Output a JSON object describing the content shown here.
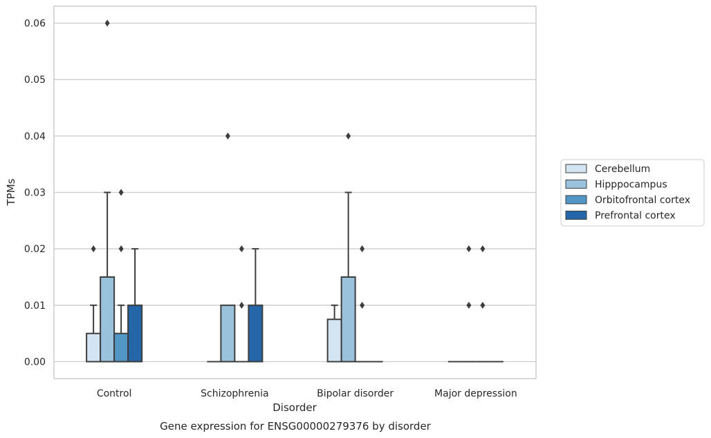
{
  "chart_data": {
    "type": "box",
    "caption": "Gene expression for ENSG00000279376 by disorder",
    "xlabel": "Disorder",
    "ylabel": "TPMs",
    "ylim": [
      -0.003,
      0.063
    ],
    "yticks": [
      0.0,
      0.01,
      0.02,
      0.03,
      0.04,
      0.05,
      0.06
    ],
    "ytick_labels": [
      "0.00",
      "0.01",
      "0.02",
      "0.03",
      "0.04",
      "0.05",
      "0.06"
    ],
    "grid": "horizontal",
    "legend_position": "right",
    "categories": [
      "Control",
      "Schizophrenia",
      "Bipolar disorder",
      "Major depression"
    ],
    "series": [
      {
        "name": "Cerebellum",
        "color": "#d3e4f3",
        "boxes": [
          {
            "q1": 0.0,
            "median": 0.0,
            "q3": 0.005,
            "whisker_low": 0.0,
            "whisker_high": 0.01,
            "outliers": [
              0.02
            ]
          },
          {
            "q1": 0.0,
            "median": 0.0,
            "q3": 0.0,
            "whisker_low": 0.0,
            "whisker_high": 0.0,
            "outliers": []
          },
          {
            "q1": 0.0,
            "median": 0.0,
            "q3": 0.0075,
            "whisker_low": 0.0,
            "whisker_high": 0.01,
            "outliers": []
          },
          {
            "q1": 0.0,
            "median": 0.0,
            "q3": 0.0,
            "whisker_low": 0.0,
            "whisker_high": 0.0,
            "outliers": []
          }
        ]
      },
      {
        "name": "Hipppocampus",
        "color": "#9ac2dc",
        "boxes": [
          {
            "q1": 0.0,
            "median": 0.0,
            "q3": 0.015,
            "whisker_low": 0.0,
            "whisker_high": 0.03,
            "outliers": [
              0.06
            ]
          },
          {
            "q1": 0.0,
            "median": 0.0,
            "q3": 0.01,
            "whisker_low": 0.0,
            "whisker_high": 0.01,
            "outliers": [
              0.04
            ]
          },
          {
            "q1": 0.0,
            "median": 0.0,
            "q3": 0.015,
            "whisker_low": 0.0,
            "whisker_high": 0.03,
            "outliers": [
              0.04
            ]
          },
          {
            "q1": 0.0,
            "median": 0.0,
            "q3": 0.0,
            "whisker_low": 0.0,
            "whisker_high": 0.0,
            "outliers": [
              0.01,
              0.02
            ]
          }
        ]
      },
      {
        "name": "Orbitofrontal cortex",
        "color": "#5296c6",
        "boxes": [
          {
            "q1": 0.0,
            "median": 0.0,
            "q3": 0.005,
            "whisker_low": 0.0,
            "whisker_high": 0.01,
            "outliers": [
              0.02,
              0.03
            ]
          },
          {
            "q1": 0.0,
            "median": 0.0,
            "q3": 0.0,
            "whisker_low": 0.0,
            "whisker_high": 0.0,
            "outliers": [
              0.01,
              0.02
            ]
          },
          {
            "q1": 0.0,
            "median": 0.0,
            "q3": 0.0,
            "whisker_low": 0.0,
            "whisker_high": 0.0,
            "outliers": [
              0.01,
              0.02
            ]
          },
          {
            "q1": 0.0,
            "median": 0.0,
            "q3": 0.0,
            "whisker_low": 0.0,
            "whisker_high": 0.0,
            "outliers": [
              0.01,
              0.02
            ]
          }
        ]
      },
      {
        "name": "Prefrontal cortex",
        "color": "#2566a8",
        "boxes": [
          {
            "q1": 0.0,
            "median": 0.0,
            "q3": 0.01,
            "whisker_low": 0.0,
            "whisker_high": 0.02,
            "outliers": []
          },
          {
            "q1": 0.0,
            "median": 0.0,
            "q3": 0.01,
            "whisker_low": 0.0,
            "whisker_high": 0.02,
            "outliers": []
          },
          {
            "q1": 0.0,
            "median": 0.0,
            "q3": 0.0,
            "whisker_low": 0.0,
            "whisker_high": 0.0,
            "outliers": []
          },
          {
            "q1": 0.0,
            "median": 0.0,
            "q3": 0.0,
            "whisker_low": 0.0,
            "whisker_high": 0.0,
            "outliers": []
          }
        ]
      }
    ]
  }
}
